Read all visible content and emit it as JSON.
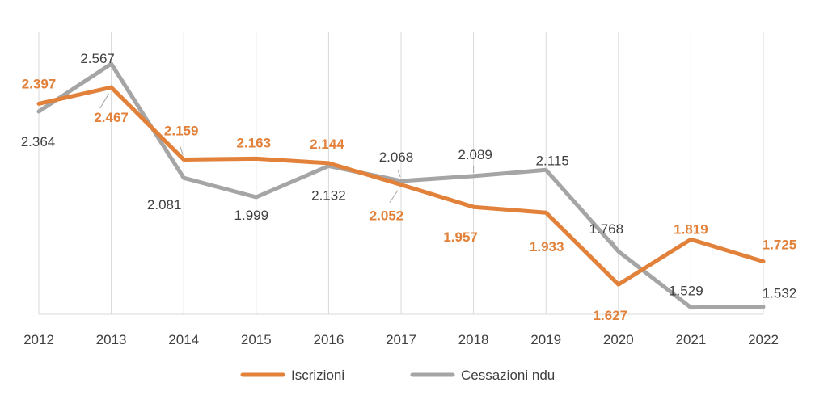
{
  "chart_data": {
    "type": "line",
    "title": "",
    "xlabel": "",
    "ylabel": "",
    "x": [
      "2012",
      "2013",
      "2014",
      "2015",
      "2016",
      "2017",
      "2018",
      "2019",
      "2020",
      "2021",
      "2022"
    ],
    "series": [
      {
        "name": "Iscrizioni",
        "color": "#E2813A",
        "values": [
          2397,
          2467,
          2159,
          2163,
          2144,
          2052,
          1957,
          1933,
          1627,
          1819,
          1725
        ],
        "labels": [
          "2.397",
          "2.467",
          "2.159",
          "2.163",
          "2.144",
          "2.052",
          "1.957",
          "1.933",
          "1.627",
          "1.819",
          "1.725"
        ]
      },
      {
        "name": "Cessazioni ndu",
        "color": "#A5A5A5",
        "values": [
          2364,
          2567,
          2081,
          1999,
          2132,
          2068,
          2089,
          2115,
          1768,
          1529,
          1532
        ],
        "labels": [
          "2.364",
          "2.567",
          "2.081",
          "1.999",
          "2.132",
          "2.068",
          "2.089",
          "2.115",
          "1.768",
          "1.529",
          "1.532"
        ]
      }
    ],
    "ylim": [
      1500,
      2600
    ],
    "grid": "vertical",
    "legend": "bottom"
  }
}
